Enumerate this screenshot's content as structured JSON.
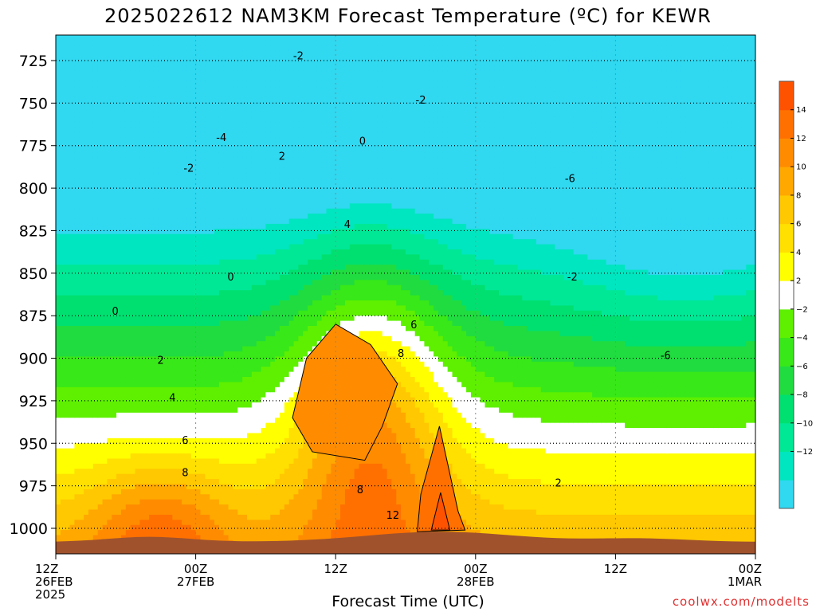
{
  "title": "2025022612 NAM3KM Forecast Temperature (ºC) for KEWR",
  "watermark": "coolwx.com/modelts",
  "chart_data": {
    "type": "heatmap",
    "title": "2025022612 NAM3KM Forecast Temperature (ºC) for KEWR",
    "xlabel": "Forecast Time (UTC)",
    "ylabel": "",
    "x_units": "hours from 12Z 26FEB 2025",
    "xlim": [
      0,
      60
    ],
    "ylim": [
      1015,
      710
    ],
    "y_ticks": [
      725,
      750,
      775,
      800,
      825,
      850,
      875,
      900,
      925,
      950,
      975,
      1000
    ],
    "x_ticks": [
      {
        "hour": 0,
        "lines": [
          "12Z",
          "26FEB",
          "2025"
        ]
      },
      {
        "hour": 12,
        "lines": [
          "00Z",
          "27FEB"
        ]
      },
      {
        "hour": 24,
        "lines": [
          "12Z"
        ]
      },
      {
        "hour": 36,
        "lines": [
          "00Z",
          "28FEB"
        ]
      },
      {
        "hour": 48,
        "lines": [
          "12Z"
        ]
      },
      {
        "hour": 60,
        "lines": [
          "00Z",
          "1MAR"
        ]
      }
    ],
    "grid": true,
    "colorbar": {
      "placement": "right",
      "levels": [
        -14,
        -12,
        -10,
        -8,
        -6,
        -4,
        -2,
        0,
        2,
        4,
        6,
        8,
        10,
        12,
        14,
        16
      ],
      "colors": [
        "#30d8f0",
        "#00e6c0",
        "#00e896",
        "#00e070",
        "#20dc40",
        "#38e818",
        "#5ef000",
        "#ffffff",
        "#ffff00",
        "#ffe000",
        "#ffc800",
        "#ffa800",
        "#ff8c00",
        "#ff7000",
        "#ff5200"
      ],
      "tick_labels": [
        "14",
        "12",
        "10",
        "8",
        "6",
        "4",
        "2",
        "−2",
        "−4",
        "−6",
        "−8",
        "−10",
        "−12"
      ]
    },
    "contour_labels": [
      {
        "text": "-2",
        "hour": 20.8,
        "p": 722
      },
      {
        "text": "-2",
        "hour": 31.3,
        "p": 748
      },
      {
        "text": "-4",
        "hour": 14.2,
        "p": 770
      },
      {
        "text": "-2",
        "hour": 11.4,
        "p": 788
      },
      {
        "text": "2",
        "hour": 19.4,
        "p": 781
      },
      {
        "text": "0",
        "hour": 26.3,
        "p": 772
      },
      {
        "text": "-6",
        "hour": 44.1,
        "p": 794
      },
      {
        "text": "4",
        "hour": 25.0,
        "p": 821
      },
      {
        "text": "0",
        "hour": 15.0,
        "p": 852
      },
      {
        "text": "-2",
        "hour": 44.3,
        "p": 852
      },
      {
        "text": "0",
        "hour": 5.1,
        "p": 872
      },
      {
        "text": "6",
        "hour": 30.7,
        "p": 880
      },
      {
        "text": "8",
        "hour": 29.6,
        "p": 897
      },
      {
        "text": "-6",
        "hour": 52.3,
        "p": 898
      },
      {
        "text": "2",
        "hour": 9.0,
        "p": 901
      },
      {
        "text": "4",
        "hour": 10.0,
        "p": 923
      },
      {
        "text": "6",
        "hour": 11.1,
        "p": 948
      },
      {
        "text": "8",
        "hour": 11.1,
        "p": 967
      },
      {
        "text": "8",
        "hour": 26.1,
        "p": 977
      },
      {
        "text": "2",
        "hour": 43.1,
        "p": 973
      },
      {
        "text": "12",
        "hour": 28.9,
        "p": 992
      }
    ],
    "bands": [
      {
        "label": ">=12",
        "color": "#ff5200",
        "series": [
          [
            33.0,
            979
          ],
          [
            33.8,
            1001
          ],
          [
            32.2,
            1001
          ]
        ]
      },
      {
        "label": "10..12",
        "color": "#ff7000",
        "series": [
          [
            32.9,
            940
          ],
          [
            34.5,
            990
          ],
          [
            35.1,
            1001
          ],
          [
            31.0,
            1002
          ],
          [
            31.3,
            980
          ]
        ]
      },
      {
        "label": "8..10",
        "color": "#ff8c00",
        "series": [
          [
            24.0,
            880
          ],
          [
            27.0,
            892
          ],
          [
            29.3,
            915
          ],
          [
            28.0,
            940
          ],
          [
            26.5,
            960
          ],
          [
            22.0,
            955
          ],
          [
            20.3,
            935
          ],
          [
            21.5,
            900
          ]
        ]
      }
    ]
  }
}
